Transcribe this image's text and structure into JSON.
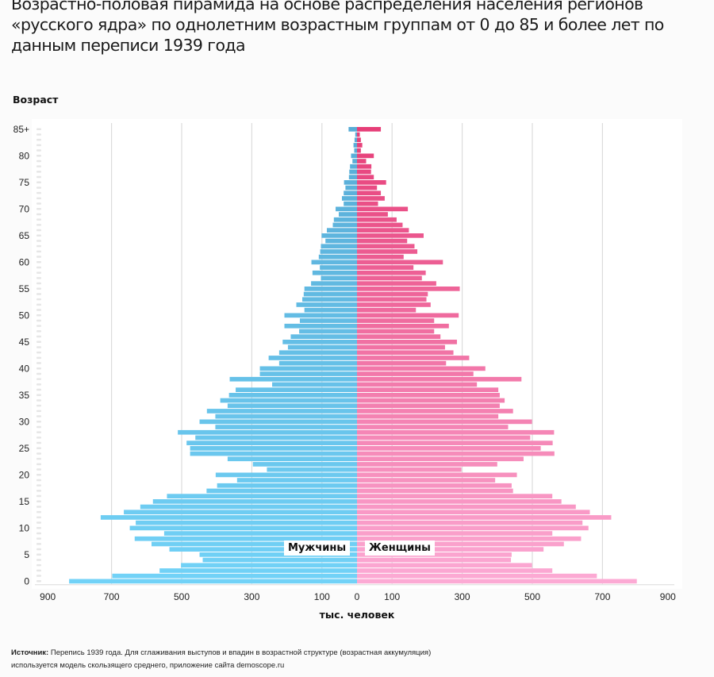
{
  "title": "Возрастно-половая пирамида на основе распределения населения регионов «русского ядра» по однолетним возрастным группам от 0 до 85 и более лет по данным переписи 1939 года",
  "source_label": "Источник:",
  "source_text": "Перепись 1939 года. Для сглаживания выступов и впадин в возрастной структуре (возрастная аккумуляция) используется модель скользящего среднего, приложение сайта demoscope.ru",
  "chart_data": {
    "type": "bar",
    "orientation": "horizontal-pyramid",
    "ylabel": "Возраст",
    "xlabel": "тыс. человек",
    "xlim": [
      -900,
      900
    ],
    "x_ticks": [
      {
        "value": -900,
        "label": "900"
      },
      {
        "value": -700,
        "label": "700"
      },
      {
        "value": -500,
        "label": "500"
      },
      {
        "value": -300,
        "label": "300"
      },
      {
        "value": -100,
        "label": "100"
      },
      {
        "value": 0,
        "label": "0"
      },
      {
        "value": 100,
        "label": "100"
      },
      {
        "value": 300,
        "label": "300"
      },
      {
        "value": 500,
        "label": "500"
      },
      {
        "value": 700,
        "label": "700"
      },
      {
        "value": 900,
        "label": "900"
      }
    ],
    "y_ticks": [
      {
        "age": 0,
        "label": "0"
      },
      {
        "age": 5,
        "label": "5"
      },
      {
        "age": 10,
        "label": "10"
      },
      {
        "age": 15,
        "label": "15"
      },
      {
        "age": 20,
        "label": "20"
      },
      {
        "age": 25,
        "label": "25"
      },
      {
        "age": 30,
        "label": "30"
      },
      {
        "age": 35,
        "label": "35"
      },
      {
        "age": 40,
        "label": "40"
      },
      {
        "age": 45,
        "label": "45"
      },
      {
        "age": 50,
        "label": "50"
      },
      {
        "age": 55,
        "label": "55"
      },
      {
        "age": 60,
        "label": "60"
      },
      {
        "age": 65,
        "label": "65"
      },
      {
        "age": 70,
        "label": "70"
      },
      {
        "age": 75,
        "label": "75"
      },
      {
        "age": 80,
        "label": "80"
      },
      {
        "age": 85,
        "label": "85+"
      }
    ],
    "categories_note": "ages 0..85 (85 = 85+)",
    "series": [
      {
        "name": "Мужчины",
        "side": "left",
        "color_top": "#58acd6",
        "color_bottom": "#72d2f7",
        "values": [
          821,
          698,
          563,
          502,
          440,
          449,
          535,
          586,
          634,
          550,
          648,
          631,
          731,
          665,
          618,
          582,
          542,
          429,
          399,
          342,
          403,
          257,
          297,
          369,
          476,
          476,
          486,
          461,
          511,
          404,
          449,
          404,
          428,
          369,
          390,
          365,
          346,
          242,
          363,
          277,
          277,
          222,
          252,
          222,
          197,
          212,
          189,
          165,
          207,
          163,
          207,
          150,
          173,
          156,
          152,
          150,
          131,
          103,
          127,
          106,
          130,
          109,
          105,
          103,
          90,
          101,
          86,
          69,
          66,
          52,
          61,
          38,
          43,
          38,
          33,
          37,
          23,
          22,
          20,
          13,
          17,
          8,
          10,
          7,
          5,
          24
        ]
      },
      {
        "name": "Женщины",
        "side": "right",
        "color_top": "#e63e78",
        "color_bottom": "#fcaad4",
        "values": [
          798,
          684,
          557,
          499,
          439,
          441,
          532,
          590,
          639,
          557,
          660,
          643,
          725,
          664,
          624,
          583,
          557,
          445,
          441,
          394,
          456,
          298,
          400,
          475,
          563,
          524,
          558,
          494,
          562,
          431,
          499,
          403,
          445,
          407,
          421,
          407,
          403,
          342,
          469,
          332,
          366,
          254,
          320,
          275,
          251,
          285,
          238,
          220,
          262,
          220,
          290,
          168,
          210,
          198,
          202,
          293,
          226,
          185,
          196,
          161,
          245,
          133,
          172,
          164,
          143,
          190,
          148,
          130,
          113,
          88,
          145,
          60,
          79,
          68,
          57,
          83,
          48,
          40,
          41,
          26,
          48,
          11,
          15,
          11,
          8,
          68
        ]
      }
    ]
  }
}
